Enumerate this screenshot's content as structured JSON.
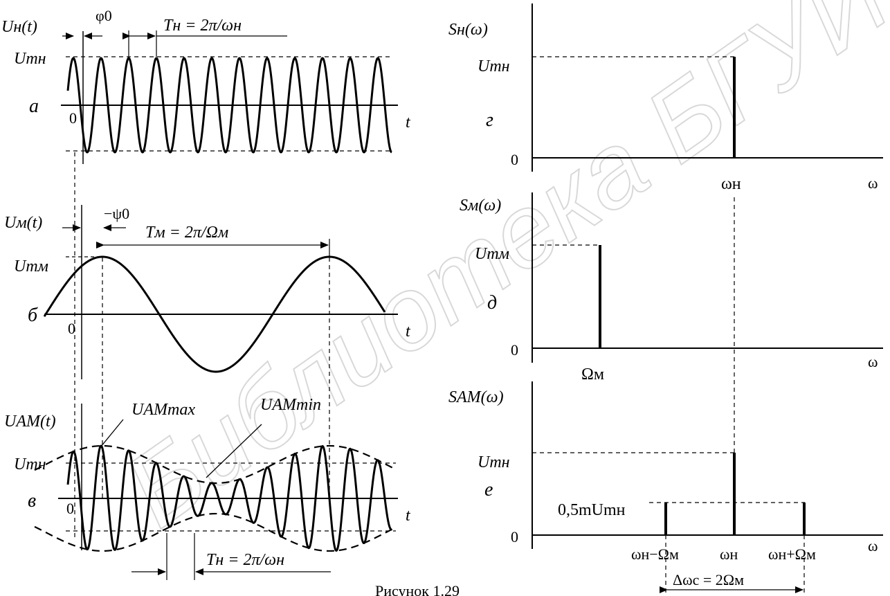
{
  "figure": {
    "caption": "Рисунок 1.29",
    "watermark": "Библиотека БГУИР"
  },
  "left_panels": {
    "a": {
      "panel_letter": "а",
      "signal_label": "Uн(t)",
      "amplitude_label": "Umн",
      "phase_label": "φ0",
      "period_label": "Tн = 2π/ωн",
      "origin_label": "0",
      "time_label": "t"
    },
    "b": {
      "panel_letter": "б",
      "signal_label": "Uм(t)",
      "amplitude_label": "Umм",
      "phase_label": "−ψ0",
      "period_label": "Tм = 2π/Ωм",
      "origin_label": "0",
      "time_label": "t"
    },
    "v": {
      "panel_letter": "в",
      "signal_label": "UАМ(t)",
      "amplitude_label": "Umн",
      "max_label": "UАМmax",
      "min_label": "UАМmin",
      "period_label": "Tн = 2π/ωн",
      "origin_label": "0",
      "time_label": "t"
    }
  },
  "right_panels": {
    "g": {
      "panel_letter": "г",
      "axis_title": "Sн(ω)",
      "amplitude_label": "Umн",
      "zero_label": "0",
      "freq_axis_label": "ω",
      "lines": [
        {
          "label": "ωн"
        }
      ]
    },
    "d": {
      "panel_letter": "д",
      "axis_title": "Sм(ω)",
      "amplitude_label": "Umм",
      "zero_label": "0",
      "freq_axis_label": "ω",
      "lines": [
        {
          "label": "Ωм"
        }
      ]
    },
    "e": {
      "panel_letter": "е",
      "axis_title": "SАМ(ω)",
      "amplitude_label": "Umн",
      "side_label": "0,5mUmн",
      "zero_label": "0",
      "freq_axis_label": "ω",
      "lines": [
        {
          "label": "ωн−Ωм"
        },
        {
          "label": "ωн"
        },
        {
          "label": "ωн+Ωм"
        }
      ],
      "bandwidth_label": "Δωс = 2Ωм"
    }
  }
}
